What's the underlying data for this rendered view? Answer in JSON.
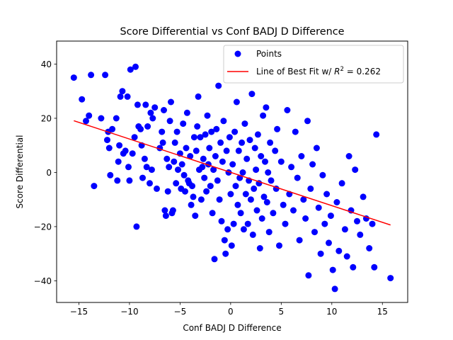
{
  "chart_data": {
    "type": "scatter",
    "title": "Score Differential vs Conf BADJ D Difference",
    "xlabel": "Conf BADJ D Difference",
    "ylabel": "Score Differential",
    "xlim": [
      -17.2,
      17.5
    ],
    "ylim": [
      -48,
      48.5
    ],
    "xticks": [
      -15,
      -10,
      -5,
      0,
      5,
      10,
      15
    ],
    "xtick_labels": [
      "−15",
      "−10",
      "−5",
      "0",
      "5",
      "10",
      "15"
    ],
    "yticks": [
      -40,
      -20,
      0,
      20,
      40
    ],
    "ytick_labels": [
      "−40",
      "−20",
      "0",
      "20",
      "40"
    ],
    "grid": false,
    "legend_position": "top-right",
    "series": [
      {
        "name": "Points",
        "kind": "scatter",
        "color": "#0000ff",
        "points": [
          [
            -15.5,
            35
          ],
          [
            -14.7,
            27
          ],
          [
            -14.3,
            19
          ],
          [
            -14.0,
            21
          ],
          [
            -13.8,
            36
          ],
          [
            -13.5,
            -5
          ],
          [
            -12.8,
            20
          ],
          [
            -12.4,
            36
          ],
          [
            -12.2,
            12
          ],
          [
            -12.1,
            15
          ],
          [
            -12.0,
            9
          ],
          [
            -11.9,
            -1
          ],
          [
            -11.7,
            16
          ],
          [
            -11.3,
            20
          ],
          [
            -11.2,
            -3
          ],
          [
            -11.1,
            4
          ],
          [
            -11.0,
            10
          ],
          [
            -10.9,
            28
          ],
          [
            -10.7,
            30
          ],
          [
            -10.6,
            7
          ],
          [
            -10.4,
            8
          ],
          [
            -10.2,
            28
          ],
          [
            -10.1,
            2
          ],
          [
            -10.0,
            -3
          ],
          [
            -9.9,
            38
          ],
          [
            -9.7,
            7
          ],
          [
            -9.5,
            13
          ],
          [
            -9.4,
            39
          ],
          [
            -9.3,
            -20
          ],
          [
            -9.2,
            25
          ],
          [
            -9.1,
            17
          ],
          [
            -8.9,
            16
          ],
          [
            -8.8,
            10
          ],
          [
            -8.7,
            -2
          ],
          [
            -8.5,
            5
          ],
          [
            -8.4,
            25
          ],
          [
            -8.3,
            2
          ],
          [
            -8.2,
            17
          ],
          [
            -8.0,
            -4
          ],
          [
            -7.9,
            22
          ],
          [
            -7.8,
            1
          ],
          [
            -7.7,
            20
          ],
          [
            -7.5,
            24
          ],
          [
            -7.3,
            -6
          ],
          [
            -7.0,
            9
          ],
          [
            -6.8,
            15
          ],
          [
            -6.7,
            11
          ],
          [
            -6.6,
            23
          ],
          [
            -6.5,
            -14
          ],
          [
            -6.4,
            -16
          ],
          [
            -6.3,
            5
          ],
          [
            -6.2,
            -7
          ],
          [
            -6.1,
            2
          ],
          [
            -6.0,
            19
          ],
          [
            -5.9,
            26
          ],
          [
            -5.8,
            -15
          ],
          [
            -5.7,
            -14
          ],
          [
            -5.6,
            4
          ],
          [
            -5.5,
            11
          ],
          [
            -5.4,
            -4
          ],
          [
            -5.3,
            15
          ],
          [
            -5.2,
            1
          ],
          [
            -5.0,
            7
          ],
          [
            -4.9,
            -6
          ],
          [
            -4.8,
            3
          ],
          [
            -4.7,
            18
          ],
          [
            -4.6,
            -1
          ],
          [
            -4.5,
            -7
          ],
          [
            -4.4,
            9
          ],
          [
            -4.3,
            22
          ],
          [
            -4.2,
            -3
          ],
          [
            -4.1,
            -4
          ],
          [
            -4.0,
            6
          ],
          [
            -3.9,
            -12
          ],
          [
            -3.8,
            -5
          ],
          [
            -3.7,
            -9
          ],
          [
            -3.6,
            13
          ],
          [
            -3.5,
            -16
          ],
          [
            -3.4,
            8
          ],
          [
            -3.3,
            17
          ],
          [
            -3.2,
            28
          ],
          [
            -3.1,
            1
          ],
          [
            -3.0,
            13
          ],
          [
            -2.9,
            -10
          ],
          [
            -2.8,
            2
          ],
          [
            -2.7,
            5
          ],
          [
            -2.6,
            -2
          ],
          [
            -2.5,
            14
          ],
          [
            -2.4,
            -7
          ],
          [
            -2.3,
            21
          ],
          [
            -2.2,
            3
          ],
          [
            -2.1,
            9
          ],
          [
            -2.0,
            -5
          ],
          [
            -1.9,
            15
          ],
          [
            -1.8,
            -15
          ],
          [
            -1.7,
            1
          ],
          [
            -1.6,
            -32
          ],
          [
            -1.5,
            6
          ],
          [
            -1.4,
            16
          ],
          [
            -1.3,
            -3
          ],
          [
            -1.2,
            32
          ],
          [
            -1.1,
            -10
          ],
          [
            -1.0,
            11
          ],
          [
            -0.9,
            -18
          ],
          [
            -0.8,
            4
          ],
          [
            -0.7,
            19
          ],
          [
            -0.6,
            -25
          ],
          [
            -0.5,
            -30
          ],
          [
            -0.4,
            8
          ],
          [
            -0.3,
            -21
          ],
          [
            -0.2,
            0
          ],
          [
            -0.1,
            13
          ],
          [
            0.0,
            -8
          ],
          [
            0.1,
            -27
          ],
          [
            0.2,
            3
          ],
          [
            0.3,
            -19
          ],
          [
            0.4,
            15
          ],
          [
            0.5,
            -5
          ],
          [
            0.6,
            26
          ],
          [
            0.7,
            -12
          ],
          [
            0.8,
            8
          ],
          [
            0.9,
            -2
          ],
          [
            1.0,
            -15
          ],
          [
            1.1,
            11
          ],
          [
            1.2,
            0
          ],
          [
            1.3,
            -21
          ],
          [
            1.4,
            18
          ],
          [
            1.5,
            -8
          ],
          [
            1.6,
            5
          ],
          [
            1.7,
            -19
          ],
          [
            1.8,
            -3
          ],
          [
            1.9,
            12
          ],
          [
            2.0,
            -10
          ],
          [
            2.1,
            29
          ],
          [
            2.2,
            -23
          ],
          [
            2.3,
            -6
          ],
          [
            2.4,
            9
          ],
          [
            2.5,
            1
          ],
          [
            2.6,
            -14
          ],
          [
            2.7,
            14
          ],
          [
            2.8,
            -4
          ],
          [
            2.9,
            -28
          ],
          [
            3.0,
            6
          ],
          [
            3.1,
            -17
          ],
          [
            3.2,
            21
          ],
          [
            3.3,
            -9
          ],
          [
            3.4,
            4
          ],
          [
            3.5,
            24
          ],
          [
            3.6,
            -11
          ],
          [
            3.7,
            0
          ],
          [
            3.8,
            -22
          ],
          [
            3.9,
            11
          ],
          [
            4.0,
            -3
          ],
          [
            4.2,
            -15
          ],
          [
            4.4,
            8
          ],
          [
            4.5,
            -6
          ],
          [
            4.6,
            16
          ],
          [
            4.8,
            -27
          ],
          [
            5.0,
            4
          ],
          [
            5.2,
            -12
          ],
          [
            5.4,
            -19
          ],
          [
            5.6,
            23
          ],
          [
            5.8,
            -8
          ],
          [
            6.0,
            2
          ],
          [
            6.2,
            -14
          ],
          [
            6.4,
            15
          ],
          [
            6.6,
            -2
          ],
          [
            6.8,
            -25
          ],
          [
            7.0,
            6
          ],
          [
            7.2,
            -10
          ],
          [
            7.4,
            -17
          ],
          [
            7.6,
            19
          ],
          [
            7.7,
            -38
          ],
          [
            7.9,
            -6
          ],
          [
            8.1,
            3
          ],
          [
            8.3,
            -22
          ],
          [
            8.5,
            9
          ],
          [
            8.7,
            -13
          ],
          [
            8.9,
            -30
          ],
          [
            9.1,
            -1
          ],
          [
            9.3,
            -19
          ],
          [
            9.5,
            -8
          ],
          [
            9.7,
            -26
          ],
          [
            9.9,
            -16
          ],
          [
            10.1,
            -36
          ],
          [
            10.3,
            -43
          ],
          [
            10.5,
            -11
          ],
          [
            10.7,
            -29
          ],
          [
            11.0,
            -4
          ],
          [
            11.3,
            -21
          ],
          [
            11.5,
            -31
          ],
          [
            11.7,
            6
          ],
          [
            11.9,
            -14
          ],
          [
            12.1,
            -35
          ],
          [
            12.3,
            1
          ],
          [
            12.5,
            -18
          ],
          [
            12.8,
            -23
          ],
          [
            13.1,
            -9
          ],
          [
            13.4,
            -17
          ],
          [
            13.7,
            -28
          ],
          [
            14.0,
            -19
          ],
          [
            14.2,
            -35
          ],
          [
            14.4,
            14
          ],
          [
            15.8,
            -39
          ]
        ]
      },
      {
        "name": "Line of Best Fit w/ R² = 0.262",
        "kind": "line",
        "color": "#ff0000",
        "x": [
          -15.5,
          15.8
        ],
        "y": [
          19.1,
          -19.4
        ]
      }
    ]
  },
  "legend": {
    "points_label": "Points",
    "fit_label_prefix": "Line of Best Fit w/ ",
    "fit_label_r2": "R",
    "fit_label_sup": "2",
    "fit_label_suffix": " = 0.262"
  }
}
